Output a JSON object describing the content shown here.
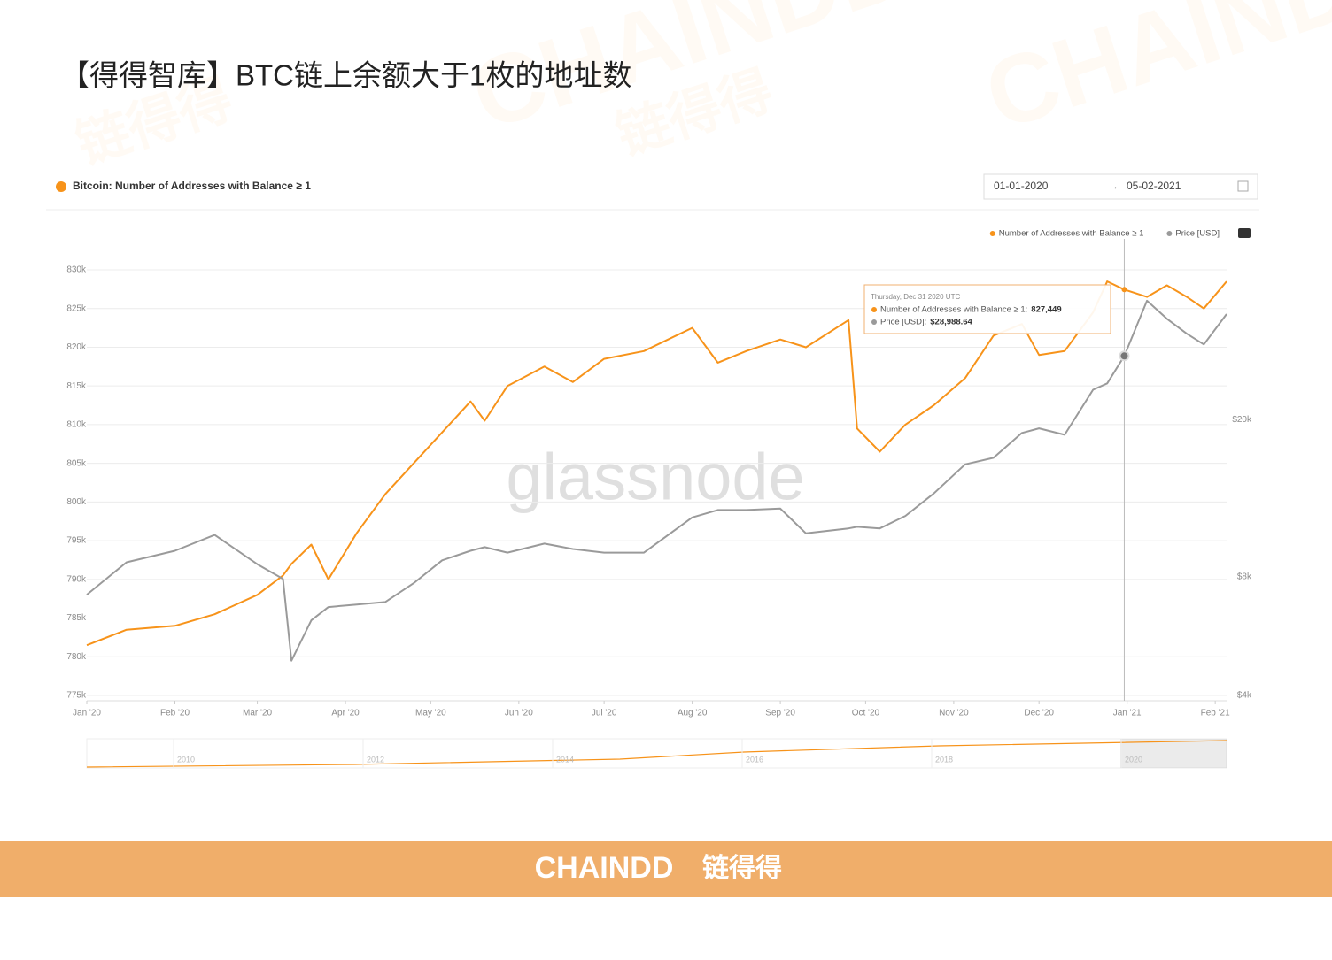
{
  "page_title": "【得得智库】BTC链上余额大于1枚的地址数",
  "watermarks": {
    "brand": "CHAINDD",
    "brand_cn": "链得得",
    "source": "glassnode"
  },
  "footer": {
    "brand": "CHAINDD",
    "brand_cn": "链得得"
  },
  "chart_data": {
    "type": "line",
    "title": "Bitcoin: Number of Addresses with Balance ≥ 1",
    "date_from": "01-01-2020",
    "date_separator": "→",
    "date_to": "05-02-2021",
    "x": [
      "2020-01-01",
      "2020-01-15",
      "2020-02-01",
      "2020-02-15",
      "2020-03-01",
      "2020-03-10",
      "2020-03-13",
      "2020-03-20",
      "2020-03-26",
      "2020-04-05",
      "2020-04-15",
      "2020-04-25",
      "2020-05-05",
      "2020-05-15",
      "2020-05-20",
      "2020-05-28",
      "2020-06-10",
      "2020-06-20",
      "2020-07-01",
      "2020-07-15",
      "2020-08-01",
      "2020-08-10",
      "2020-08-20",
      "2020-09-01",
      "2020-09-10",
      "2020-09-25",
      "2020-09-28",
      "2020-10-06",
      "2020-10-15",
      "2020-10-25",
      "2020-11-05",
      "2020-11-15",
      "2020-11-25",
      "2020-12-01",
      "2020-12-10",
      "2020-12-20",
      "2020-12-25",
      "2020-12-31",
      "2021-01-08",
      "2021-01-15",
      "2021-01-22",
      "2021-01-28",
      "2021-02-05"
    ],
    "series": [
      {
        "name": "Number of Addresses with Balance ≥ 1",
        "color": "#f7931a",
        "values": [
          781500,
          783500,
          784000,
          785500,
          788000,
          790500,
          792000,
          794500,
          790000,
          796000,
          801000,
          805000,
          809000,
          813000,
          810500,
          815000,
          817500,
          815500,
          818500,
          819500,
          822500,
          818000,
          819500,
          821000,
          820000,
          823500,
          809500,
          806500,
          810000,
          812500,
          816000,
          821500,
          823000,
          819000,
          819500,
          824500,
          828500,
          827449,
          826500,
          828000,
          826500,
          825000,
          828500
        ]
      },
      {
        "name": "Price [USD]",
        "color": "#9a9a9a",
        "axis": "y2",
        "values": [
          7200,
          8700,
          9300,
          10200,
          8600,
          7900,
          4900,
          6200,
          6700,
          6800,
          6900,
          7700,
          8800,
          9300,
          9500,
          9200,
          9700,
          9400,
          9200,
          9200,
          11300,
          11800,
          11800,
          11900,
          10300,
          10600,
          10700,
          10600,
          11400,
          13000,
          15400,
          16000,
          18500,
          19000,
          18300,
          23800,
          24700,
          28988.64,
          40000,
          36000,
          33000,
          31000,
          37000
        ]
      }
    ],
    "xlim": [
      "2020-01-01",
      "2021-02-05"
    ],
    "xticks": [
      {
        "value": "2020-01-01",
        "label": "Jan '20"
      },
      {
        "value": "2020-02-01",
        "label": "Feb '20"
      },
      {
        "value": "2020-03-01",
        "label": "Mar '20"
      },
      {
        "value": "2020-04-01",
        "label": "Apr '20"
      },
      {
        "value": "2020-05-01",
        "label": "May '20"
      },
      {
        "value": "2020-06-01",
        "label": "Jun '20"
      },
      {
        "value": "2020-07-01",
        "label": "Jul '20"
      },
      {
        "value": "2020-08-01",
        "label": "Aug '20"
      },
      {
        "value": "2020-09-01",
        "label": "Sep '20"
      },
      {
        "value": "2020-10-01",
        "label": "Oct '20"
      },
      {
        "value": "2020-11-01",
        "label": "Nov '20"
      },
      {
        "value": "2020-12-01",
        "label": "Dec '20"
      },
      {
        "value": "2021-01-01",
        "label": "Jan '21"
      },
      {
        "value": "2021-02-01",
        "label": "Feb '21"
      }
    ],
    "ylim": [
      775000,
      830000
    ],
    "yticks": [
      {
        "value": 775000,
        "label": "775k"
      },
      {
        "value": 780000,
        "label": "780k"
      },
      {
        "value": 785000,
        "label": "785k"
      },
      {
        "value": 790000,
        "label": "790k"
      },
      {
        "value": 795000,
        "label": "795k"
      },
      {
        "value": 800000,
        "label": "800k"
      },
      {
        "value": 805000,
        "label": "805k"
      },
      {
        "value": 810000,
        "label": "810k"
      },
      {
        "value": 815000,
        "label": "815k"
      },
      {
        "value": 820000,
        "label": "820k"
      },
      {
        "value": 825000,
        "label": "825k"
      },
      {
        "value": 830000,
        "label": "830k"
      }
    ],
    "y2lim": [
      4000,
      47900
    ],
    "y2log": true,
    "y2ticks": [
      {
        "value": 4000,
        "label": "$4k"
      },
      {
        "value": 8000,
        "label": "$8k"
      },
      {
        "value": 20000,
        "label": "$20k"
      }
    ],
    "grid": true,
    "legend": "top-right",
    "tooltip": {
      "index": 37,
      "title": "Thursday, Dec 31 2020 UTC",
      "rows": [
        {
          "name": "Number of Addresses with Balance ≥ 1:",
          "value_label": "827,449"
        },
        {
          "name": "Price [USD]:",
          "value_label": "$28,988.64"
        }
      ]
    },
    "navigator_labels": [
      "2010",
      "2012",
      "2014",
      "2016",
      "2018",
      "2020"
    ]
  }
}
